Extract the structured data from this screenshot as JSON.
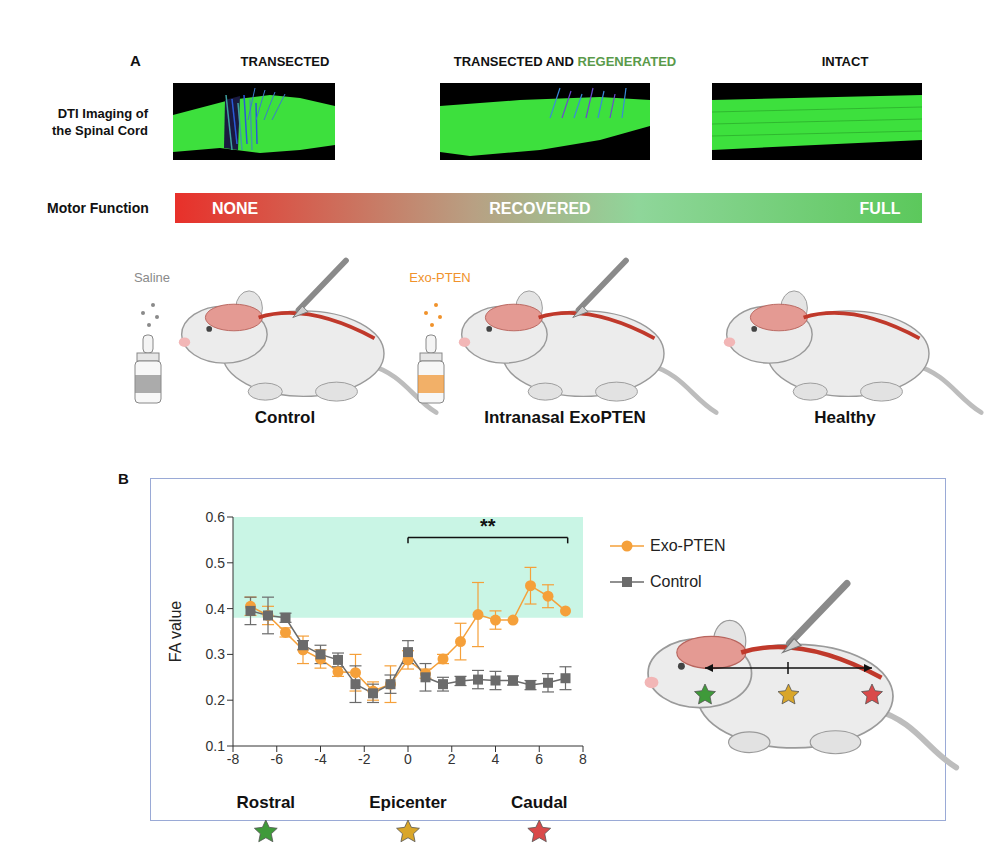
{
  "panel_a": {
    "label": "A",
    "columns": [
      {
        "title": "TRANSECTED"
      },
      {
        "title": "TRANSECTED AND",
        "title_highlight": "REGENERATED"
      },
      {
        "title": "INTACT"
      }
    ],
    "row_label": "DTI Imaging of the Spinal Cord",
    "motor_function": {
      "label": "Motor Function",
      "levels": [
        "NONE",
        "RECOVERED",
        "FULL"
      ]
    },
    "groups": [
      {
        "name": "Control",
        "treatment": "Saline",
        "color": "#8a8a8a"
      },
      {
        "name": "Intranasal ExoPTEN",
        "treatment": "Exo-PTEN",
        "color": "#f0922b"
      },
      {
        "name": "Healthy"
      }
    ]
  },
  "panel_b_label": "B",
  "chart_data": {
    "type": "line",
    "y_label": "FA value",
    "x": [
      -7.2,
      -6.4,
      -5.6,
      -4.8,
      -4.0,
      -3.2,
      -2.4,
      -1.6,
      -0.8,
      0,
      0.8,
      1.6,
      2.4,
      3.2,
      4.0,
      4.8,
      5.6,
      6.4,
      7.2
    ],
    "xlim": [
      -8,
      8
    ],
    "xticks": [
      -8,
      -6,
      -4,
      -2,
      0,
      2,
      4,
      6,
      8
    ],
    "ylim": [
      0.1,
      0.6
    ],
    "yticks": [
      0.1,
      0.2,
      0.3,
      0.4,
      0.5,
      0.6
    ],
    "series": [
      {
        "name": "Exo-PTEN",
        "color": "#f5a03a",
        "marker": "circle",
        "values": [
          0.405,
          0.385,
          0.348,
          0.31,
          0.29,
          0.262,
          0.26,
          0.22,
          0.235,
          0.288,
          0.258,
          0.29,
          0.328,
          0.387,
          0.375,
          0.375,
          0.45,
          0.427,
          0.395
        ],
        "errors": [
          0.02,
          0.02,
          0.01,
          0.03,
          0.02,
          0.01,
          0.04,
          0.02,
          0.04,
          0.02,
          0.01,
          0.01,
          0.04,
          0.07,
          0.02,
          0.0,
          0.04,
          0.025,
          0.0
        ]
      },
      {
        "name": "Control",
        "color": "#6b6b6b",
        "marker": "square",
        "values": [
          0.395,
          0.385,
          0.38,
          0.32,
          0.3,
          0.288,
          0.235,
          0.215,
          0.235,
          0.305,
          0.25,
          0.235,
          0.242,
          0.245,
          0.243,
          0.243,
          0.233,
          0.238,
          0.248
        ],
        "errors": [
          0.03,
          0.04,
          0.01,
          0.01,
          0.02,
          0.015,
          0.04,
          0.02,
          0.02,
          0.025,
          0.03,
          0.015,
          0.01,
          0.02,
          0.02,
          0.01,
          0.01,
          0.02,
          0.025
        ]
      }
    ],
    "highlight_range": [
      0.38,
      0.6
    ],
    "annotations": [
      {
        "text": "**",
        "x_span": [
          0,
          7.3
        ]
      }
    ],
    "x_region_labels": [
      {
        "text": "Rostral",
        "x": -6.5,
        "color": "#3f9a3a"
      },
      {
        "text": "Epicenter",
        "x": 0,
        "color": "#d9a62a"
      },
      {
        "text": "Caudal",
        "x": 6,
        "color": "#d94a4a"
      }
    ],
    "legend": "right"
  }
}
